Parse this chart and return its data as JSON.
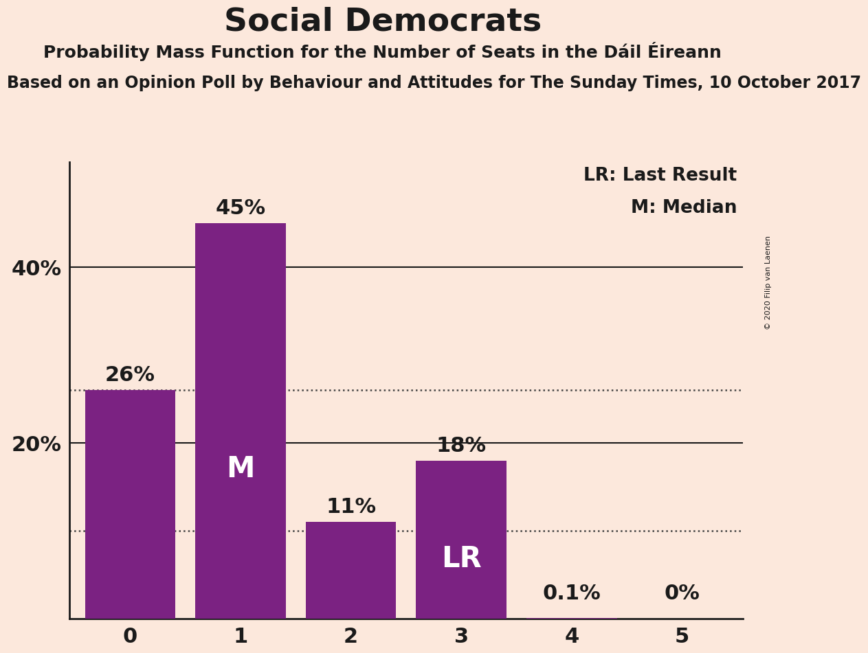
{
  "title": "Social Democrats",
  "subtitle": "Probability Mass Function for the Number of Seats in the Dáil Éireann",
  "source_line": "Based on an Opinion Poll by Behaviour and Attitudes for The Sunday Times, 10 October 2017",
  "copyright": "© 2020 Filip van Laenen",
  "categories": [
    0,
    1,
    2,
    3,
    4,
    5
  ],
  "values": [
    0.26,
    0.45,
    0.11,
    0.18,
    0.001,
    0.0
  ],
  "bar_color": "#7b2282",
  "background_color": "#fce8dc",
  "bar_labels": [
    "26%",
    "45%",
    "11%",
    "18%",
    "0.1%",
    "0%"
  ],
  "median_bar": 1,
  "lr_bar": 3,
  "median_label": "M",
  "lr_label": "LR",
  "dotted_lines": [
    0.26,
    0.1
  ],
  "solid_lines": [
    0.2,
    0.4
  ],
  "yticks": [
    0.2,
    0.4
  ],
  "ytick_labels": [
    "20%",
    "40%"
  ],
  "ylim": [
    0,
    0.52
  ],
  "xlim": [
    -0.55,
    5.55
  ],
  "legend_lr": "LR: Last Result",
  "legend_m": "M: Median",
  "title_fontsize": 34,
  "subtitle_fontsize": 18,
  "source_fontsize": 17,
  "bar_label_fontsize": 22,
  "ytick_fontsize": 22,
  "xtick_fontsize": 22,
  "legend_fontsize": 19,
  "bar_width": 0.82
}
